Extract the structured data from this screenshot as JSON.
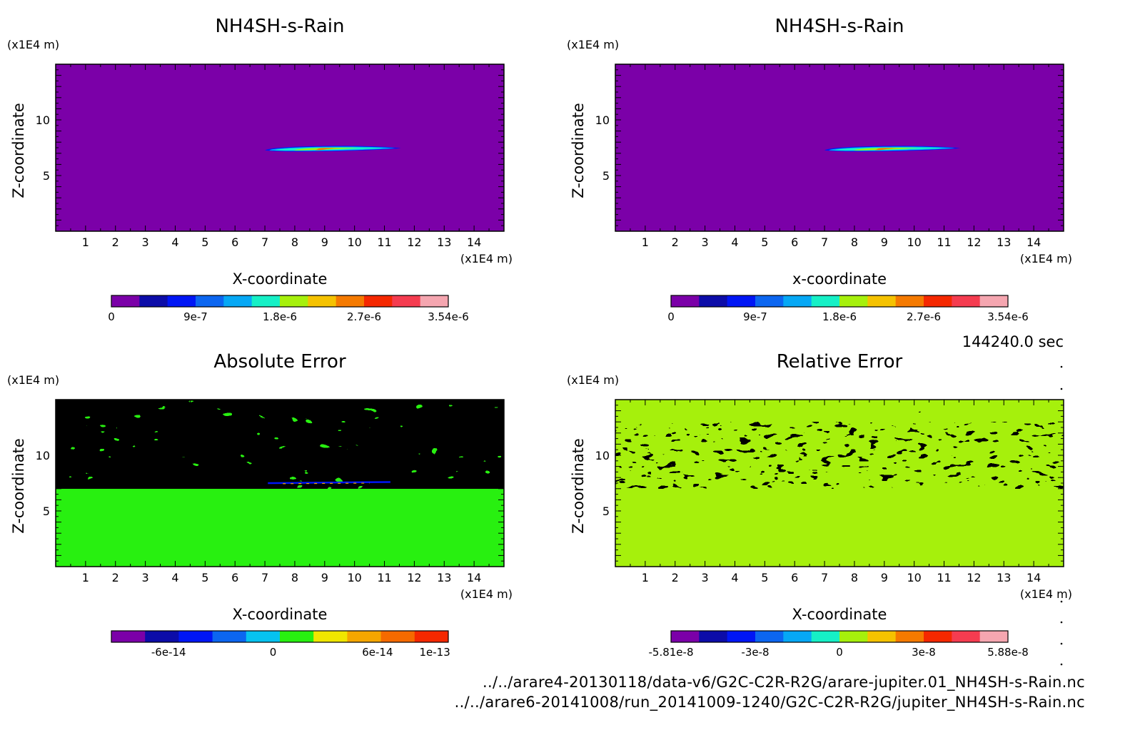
{
  "time_label": "144240.0 sec",
  "file_paths": [
    "../../arare4-20130118/data-v6/G2C-C2R-R2G/arare-jupiter.01_NH4SH-s-Rain.nc",
    "../../arare6-20141008/run_20141009-1240/G2C-C2R-R2G/jupiter_NH4SH-s-Rain.nc"
  ],
  "chart_data": [
    {
      "type": "heatmap",
      "title": "NH4SH-s-Rain",
      "xlabel": "X-coordinate",
      "ylabel": "Z-coordinate",
      "x_unit": "(x1E4 m)",
      "y_unit": "(x1E4 m)",
      "x_ticks": [
        "1",
        "2",
        "3",
        "4",
        "5",
        "6",
        "7",
        "8",
        "9",
        "10",
        "11",
        "12",
        "13",
        "14"
      ],
      "y_ticks": [
        "5",
        "10"
      ],
      "xlim": [
        0,
        15
      ],
      "ylim": [
        0,
        15
      ],
      "colorbar_colors": [
        "#7b00a8",
        "#0c0ca8",
        "#0016f5",
        "#0c66f0",
        "#06a8f5",
        "#16f0c6",
        "#a6f00c",
        "#f5c200",
        "#f57a00",
        "#f52800",
        "#f53c50",
        "#f5a6b0"
      ],
      "colorbar_ticks": [
        "0",
        "9e-7",
        "1.8e-6",
        "2.7e-6",
        "3.54e-6"
      ],
      "feature": "thin elongated rain band near z=7.5, x=7 to 11.5, max 3.54e-6"
    },
    {
      "type": "heatmap",
      "title": "NH4SH-s-Rain",
      "xlabel": "x-coordinate",
      "ylabel": "Z-coordinate",
      "x_unit": "(x1E4 m)",
      "y_unit": "(x1E4 m)",
      "x_ticks": [
        "1",
        "2",
        "3",
        "4",
        "5",
        "6",
        "7",
        "8",
        "9",
        "10",
        "11",
        "12",
        "13",
        "14"
      ],
      "y_ticks": [
        "5",
        "10"
      ],
      "xlim": [
        0,
        15
      ],
      "ylim": [
        0,
        15
      ],
      "colorbar_colors": [
        "#7b00a8",
        "#0c0ca8",
        "#0016f5",
        "#0c66f0",
        "#06a8f5",
        "#16f0c6",
        "#a6f00c",
        "#f5c200",
        "#f57a00",
        "#f52800",
        "#f53c50",
        "#f5a6b0"
      ],
      "colorbar_ticks": [
        "0",
        "9e-7",
        "1.8e-6",
        "2.7e-6",
        "3.54e-6"
      ],
      "feature": "thin elongated rain band near z=7.5, x=7 to 11.5, max 3.54e-6"
    },
    {
      "type": "heatmap",
      "title": "Absolute Error",
      "xlabel": "X-coordinate",
      "ylabel": "Z-coordinate",
      "x_unit": "(x1E4 m)",
      "y_unit": "(x1E4 m)",
      "x_ticks": [
        "1",
        "2",
        "3",
        "4",
        "5",
        "6",
        "7",
        "8",
        "9",
        "10",
        "11",
        "12",
        "13",
        "14"
      ],
      "y_ticks": [
        "5",
        "10"
      ],
      "xlim": [
        0,
        15
      ],
      "ylim": [
        0,
        15
      ],
      "colorbar_colors": [
        "#7b00a8",
        "#0c0ca8",
        "#0016f5",
        "#0c66f0",
        "#06c2f0",
        "#28f010",
        "#f0e600",
        "#f5a600",
        "#f56a00",
        "#f52800"
      ],
      "colorbar_ticks": [
        "-6e-14",
        "0",
        "6e-14",
        "1e-13"
      ],
      "feature": "noisy light-blue/green patches above z=7, uniform 0 below"
    },
    {
      "type": "heatmap",
      "title": "Relative Error",
      "xlabel": "X-coordinate",
      "ylabel": "Z-coordinate",
      "x_unit": "(x1E4 m)",
      "y_unit": "(x1E4 m)",
      "x_ticks": [
        "1",
        "2",
        "3",
        "4",
        "5",
        "6",
        "7",
        "8",
        "9",
        "10",
        "11",
        "12",
        "13",
        "14"
      ],
      "y_ticks": [
        "5",
        "10"
      ],
      "xlim": [
        0,
        15
      ],
      "ylim": [
        0,
        15
      ],
      "colorbar_colors": [
        "#7b00a8",
        "#0c0ca8",
        "#0016f5",
        "#0c66f0",
        "#06a8f5",
        "#16f0c6",
        "#a6f00c",
        "#f5c200",
        "#f57a00",
        "#f52800",
        "#f53c50",
        "#f5a6b0"
      ],
      "colorbar_ticks": [
        "-5.81e-8",
        "-3e-8",
        "0",
        "3e-8",
        "5.88e-8"
      ],
      "feature": "strong mixed noise between z=7 and 13, uniform 0 elsewhere"
    }
  ]
}
